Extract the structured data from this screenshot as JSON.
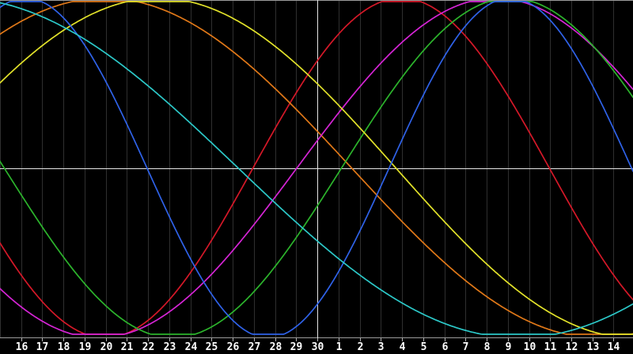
{
  "chart_data": {
    "type": "line",
    "title": "",
    "x_axis": {
      "tick_labels": [
        "16",
        "17",
        "18",
        "19",
        "20",
        "21",
        "22",
        "23",
        "24",
        "25",
        "26",
        "27",
        "28",
        "29",
        "30",
        "1",
        "2",
        "3",
        "4",
        "5",
        "6",
        "7",
        "8",
        "9",
        "10",
        "11",
        "12",
        "13",
        "14"
      ],
      "today_label": "30",
      "today_tick_index": 14,
      "grid": true
    },
    "y_axis": {
      "min": -1,
      "max": 1,
      "zero_line": true,
      "tick_labels": []
    },
    "series": [
      {
        "name": "red-cycle",
        "color": "#d41828",
        "period_days": 28.0,
        "peak_tick_index": 17.96,
        "value_at_today": 0.63
      },
      {
        "name": "orange-cycle",
        "color": "#e07818",
        "period_days": 46.7,
        "peak_tick_index": 3.94,
        "value_at_today": 0.22
      },
      {
        "name": "magenta-cycle",
        "color": "#d524d5",
        "period_days": 37.5,
        "peak_tick_index": 22.41,
        "value_at_today": 0.16
      },
      {
        "name": "green-cycle",
        "color": "#2cb42c",
        "period_days": 31.9,
        "peak_tick_index": 23.12,
        "value_at_today": -0.22
      },
      {
        "name": "yellow-cycle",
        "color": "#e2e22a",
        "period_days": 44.9,
        "peak_tick_index": 6.48,
        "value_at_today": 0.5
      },
      {
        "name": "blue-cycle",
        "color": "#2f62e8",
        "period_days": 22.9,
        "peak_tick_index": 23.12,
        "value_at_today": -0.8
      },
      {
        "name": "cyan-cycle",
        "color": "#2cc8c8",
        "period_days": 53.0,
        "peak_tick_index": -3.0,
        "value_at_today": -0.43
      }
    ],
    "style": {
      "background": "#000000",
      "gridline_color": "#2f2f2f",
      "border_color": "#9c9c9c",
      "zero_line_color": "#e6e6e6",
      "today_line_color": "#e6e6e6",
      "tick_color": "#b4b4b4",
      "label_color": "#ffffff"
    }
  }
}
